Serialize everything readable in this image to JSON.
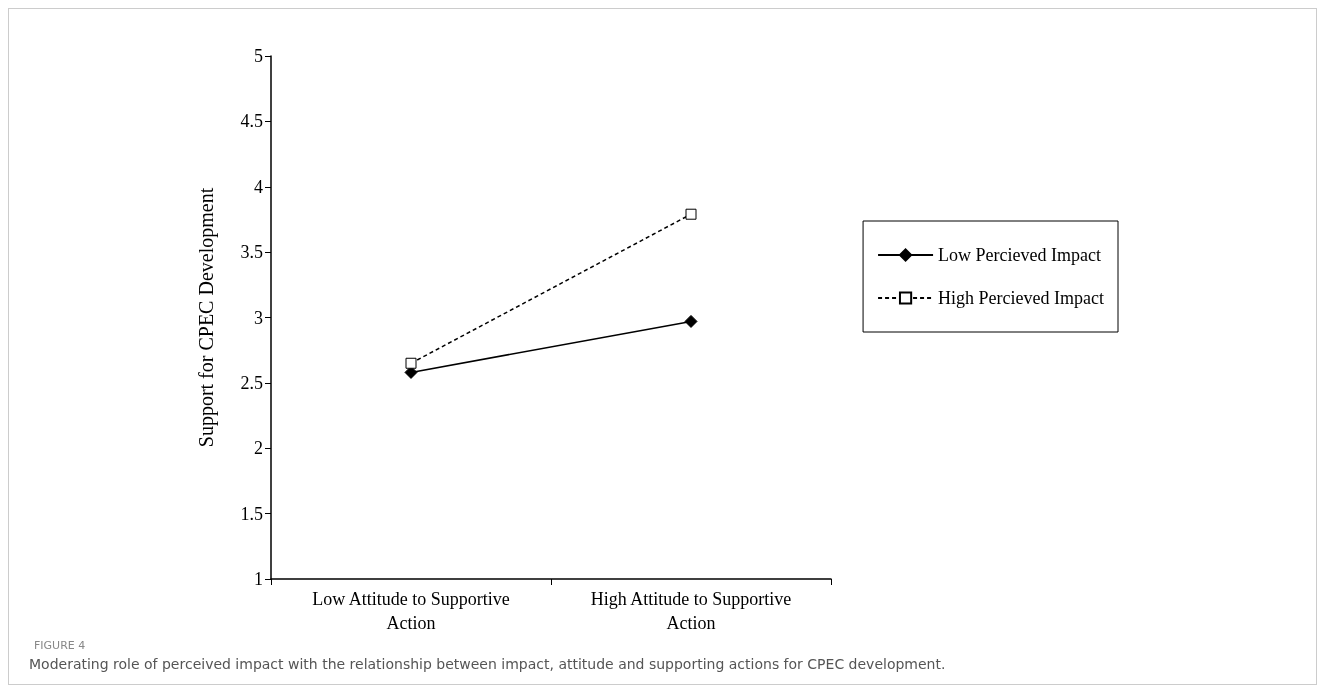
{
  "chart_data": {
    "type": "line",
    "title": "FIGURE 4",
    "ylabel": "Support for CPEC Development",
    "categories": [
      "Low Attitude to Supportive\nAction",
      "High Attitude to Supportive\nAction"
    ],
    "series": [
      {
        "name": "Low Percieved Impact",
        "color": "#000000",
        "values": [
          2.58,
          2.97
        ],
        "marker": "diamond",
        "line_style": "solid"
      },
      {
        "name": "High Percieved Impact",
        "color": "#000000",
        "values": [
          2.65,
          3.79
        ],
        "marker": "square",
        "line_style": "dashed"
      }
    ],
    "ylim": [
      1,
      5
    ],
    "yticks": [
      1,
      1.5,
      2,
      2.5,
      3,
      3.5,
      4,
      4.5,
      5
    ],
    "grid": false,
    "legend": "right",
    "annotations": [
      "Moderating role of perceived impact with the relationship between impact, attitude and supporting actions for CPEC development."
    ]
  }
}
